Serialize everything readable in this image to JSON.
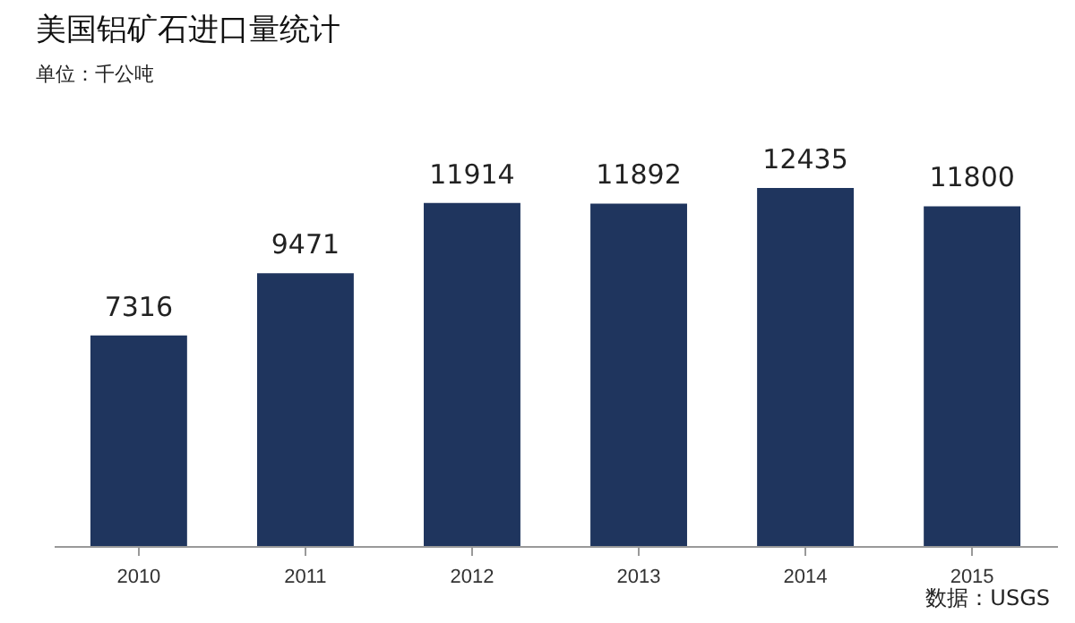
{
  "chart_data": {
    "type": "bar",
    "title": "美国铝矿石进口量统计",
    "subtitle": "单位：千公吨",
    "categories": [
      "2010",
      "2011",
      "2012",
      "2013",
      "2014",
      "2015"
    ],
    "values": [
      7316,
      9471,
      11914,
      11892,
      12435,
      11800
    ],
    "color": "#1f355e",
    "data_labels": true,
    "grid": false,
    "annotations": [
      "数据：USGS"
    ]
  }
}
